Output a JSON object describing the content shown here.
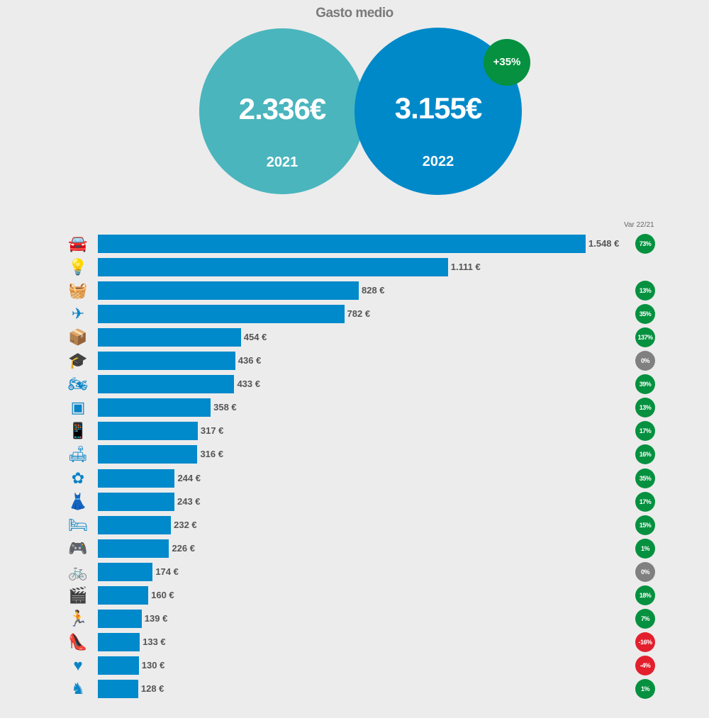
{
  "header": {
    "title": "Gasto medio"
  },
  "summary": {
    "y2021": {
      "amount": "2.336€",
      "year": "2021"
    },
    "y2022": {
      "amount": "3.155€",
      "year": "2022"
    },
    "change": "+35%"
  },
  "colors": {
    "teal": "#4ab5bd",
    "blue": "#0089c9",
    "green": "#05913f",
    "grey": "#808080",
    "red": "#e31f2d"
  },
  "chart_data": {
    "type": "bar",
    "orientation": "horizontal",
    "title": "Gasto medio",
    "var_header": "Var 22/21",
    "categories": [
      "car",
      "lightbulb",
      "basket",
      "plane",
      "box",
      "graduation-cap",
      "motorcycle",
      "washing-machine",
      "phone",
      "sofa",
      "pacifier",
      "dress",
      "bed",
      "gamepad",
      "bicycle",
      "clapperboard",
      "runner",
      "high-heel",
      "heart",
      "rocking-horse"
    ],
    "values": [
      1548,
      1111,
      828,
      782,
      454,
      436,
      433,
      358,
      317,
      316,
      244,
      243,
      232,
      226,
      174,
      160,
      139,
      133,
      130,
      128
    ],
    "value_labels": [
      "1.548 €",
      "1.111 €",
      "828 €",
      "782 €",
      "454 €",
      "436 €",
      "433 €",
      "358 €",
      "317 €",
      "316 €",
      "244 €",
      "243 €",
      "232 €",
      "226 €",
      "174 €",
      "160 €",
      "139 €",
      "133 €",
      "130 €",
      "128 €"
    ],
    "var_labels": [
      "73%",
      null,
      "13%",
      "35%",
      "137%",
      "0%",
      "39%",
      "13%",
      "17%",
      "16%",
      "35%",
      "17%",
      "15%",
      "1%",
      "0%",
      "18%",
      "7%",
      "-16%",
      "-4%",
      "1%"
    ],
    "xlim": [
      0,
      1548
    ]
  }
}
